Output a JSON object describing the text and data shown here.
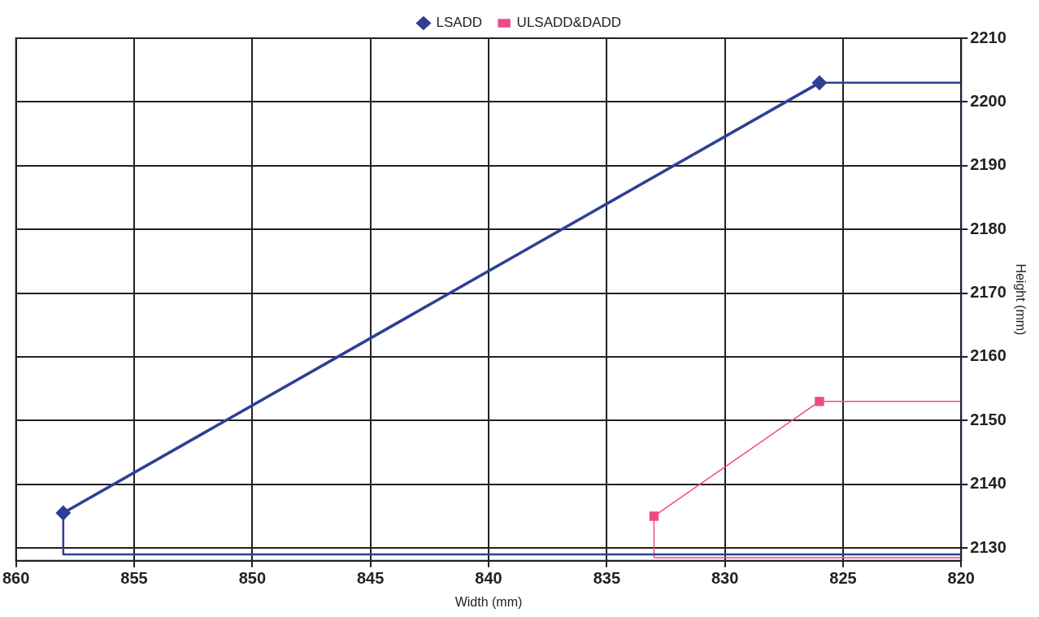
{
  "chart_data": {
    "type": "line",
    "xlabel": "Width (mm)",
    "ylabel": "Height (mm)",
    "xlim": [
      860,
      820
    ],
    "xticks": [
      860,
      855,
      850,
      845,
      840,
      835,
      830,
      825,
      820
    ],
    "ylim": [
      2128,
      2210
    ],
    "yticks": [
      2130,
      2140,
      2150,
      2160,
      2170,
      2180,
      2190,
      2200,
      2210
    ],
    "grid": true,
    "legend": "top",
    "series": [
      {
        "name": "LSADD",
        "color": "#2e3f94",
        "marker": "diamond",
        "x": [
          858,
          826
        ],
        "values": [
          2135.5,
          2203
        ]
      },
      {
        "name": "ULSADD&DADD",
        "color": "#ee4a8a",
        "marker": "square",
        "x": [
          833,
          826
        ],
        "values": [
          2135,
          2153
        ]
      },
      {
        "color": "#2e3f94",
        "marker": "none",
        "x": [
          826,
          820,
          820,
          858,
          858
        ],
        "values": [
          2203,
          2203,
          2129,
          2129,
          2135.5
        ]
      },
      {
        "color": "#ee4a8a",
        "marker": "none",
        "x": [
          826,
          820,
          820,
          833,
          833
        ],
        "values": [
          2153,
          2153,
          2128.5,
          2128.5,
          2135
        ]
      }
    ]
  }
}
